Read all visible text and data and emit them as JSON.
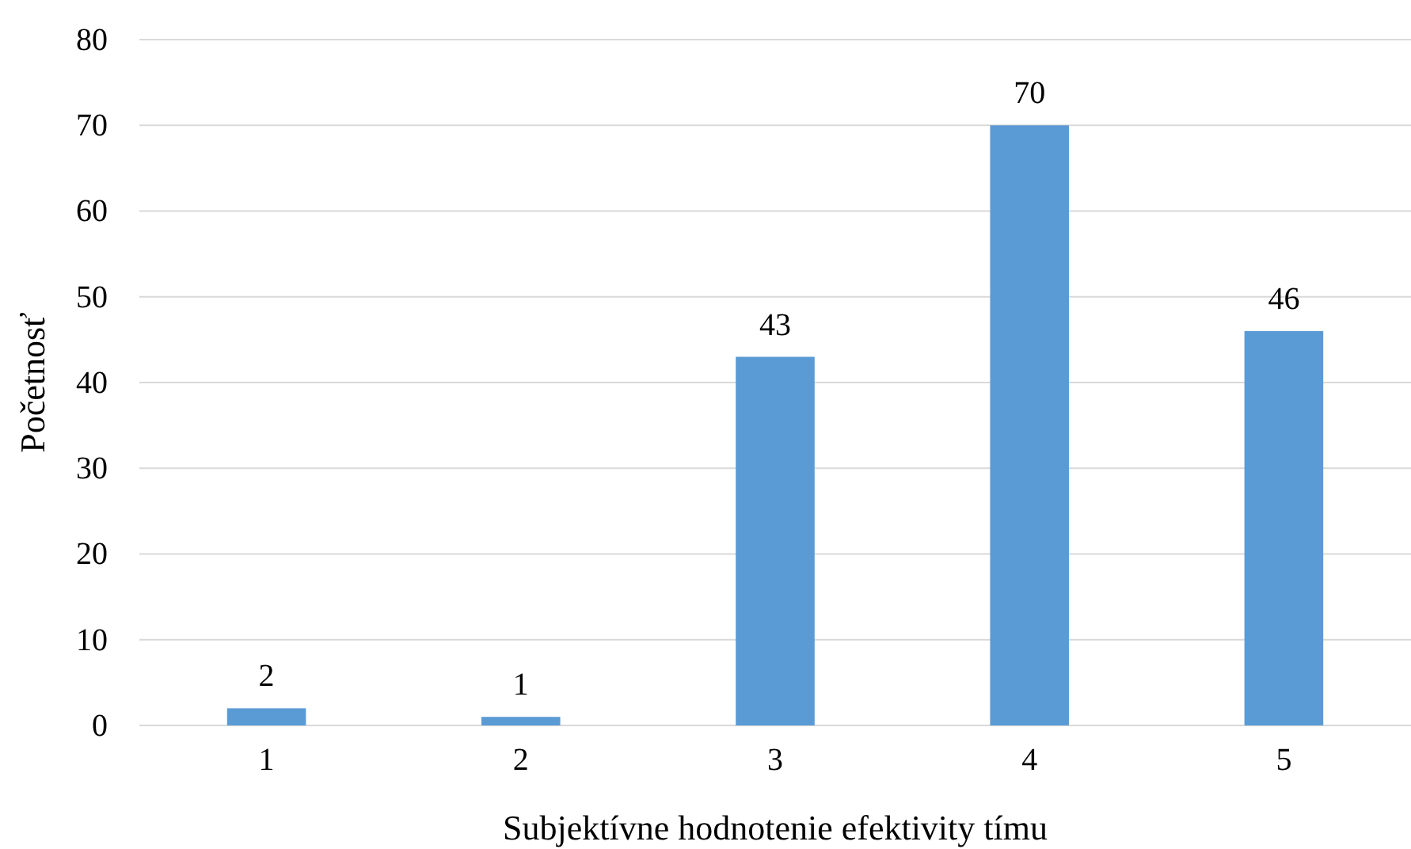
{
  "chart_data": {
    "type": "bar",
    "xlabel": "Subjektívne hodnotenie efektivity tímu",
    "ylabel": "Početnosť",
    "categories": [
      "1",
      "2",
      "3",
      "4",
      "5"
    ],
    "values": [
      2,
      1,
      43,
      70,
      46
    ],
    "color": "#5b9bd5",
    "ylim": [
      0,
      80
    ],
    "yticks": [
      0,
      10,
      20,
      30,
      40,
      50,
      60,
      70,
      80
    ],
    "grid": "y",
    "data_labels": true
  }
}
